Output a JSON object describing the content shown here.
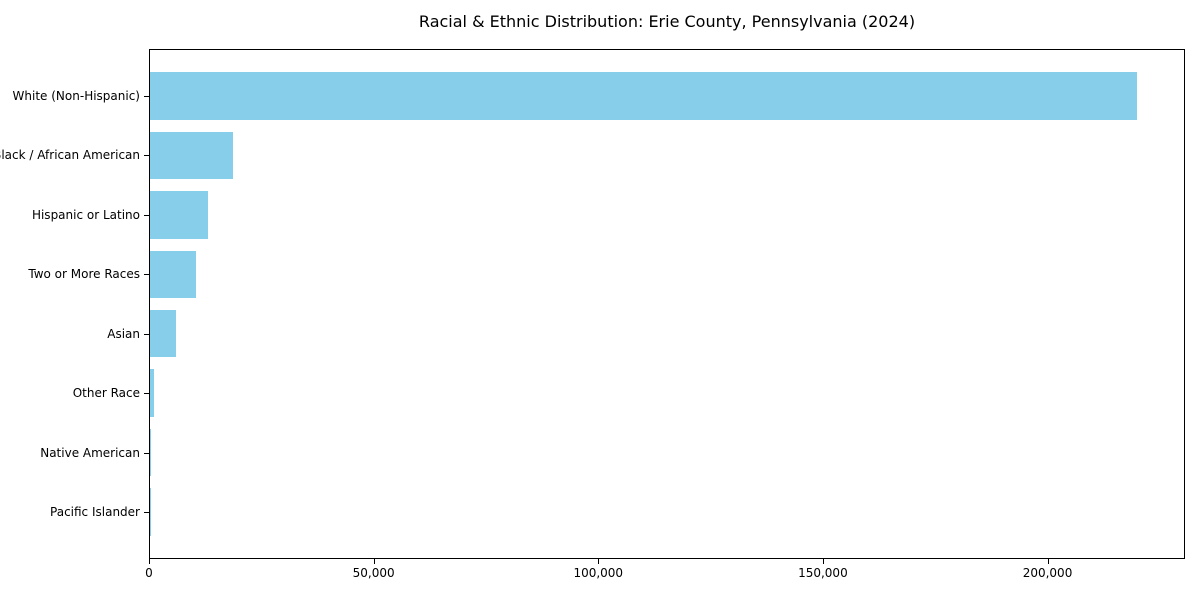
{
  "title": "Racial & Ethnic Distribution: Erie County, Pennsylvania (2024)",
  "chart_data": {
    "type": "bar",
    "orientation": "horizontal",
    "title": "Racial & Ethnic Distribution: Erie County, Pennsylvania (2024)",
    "xlabel": "",
    "ylabel": "",
    "categories": [
      "White (Non-Hispanic)",
      "Black / African American",
      "Hispanic or Latino",
      "Two or More Races",
      "Asian",
      "Other Race",
      "Native American",
      "Pacific Islander"
    ],
    "values": [
      219600,
      18500,
      13000,
      10200,
      5700,
      950,
      250,
      60
    ],
    "xlim": [
      0,
      230600
    ],
    "xticks": [
      0,
      50000,
      100000,
      150000,
      200000
    ],
    "xtick_labels": [
      "0",
      "50,000",
      "100,000",
      "150,000",
      "200,000"
    ],
    "bar_color": "#87CEEB",
    "frame_color": "#000000",
    "text_color": "#000000",
    "grid": false,
    "legend": "none"
  }
}
